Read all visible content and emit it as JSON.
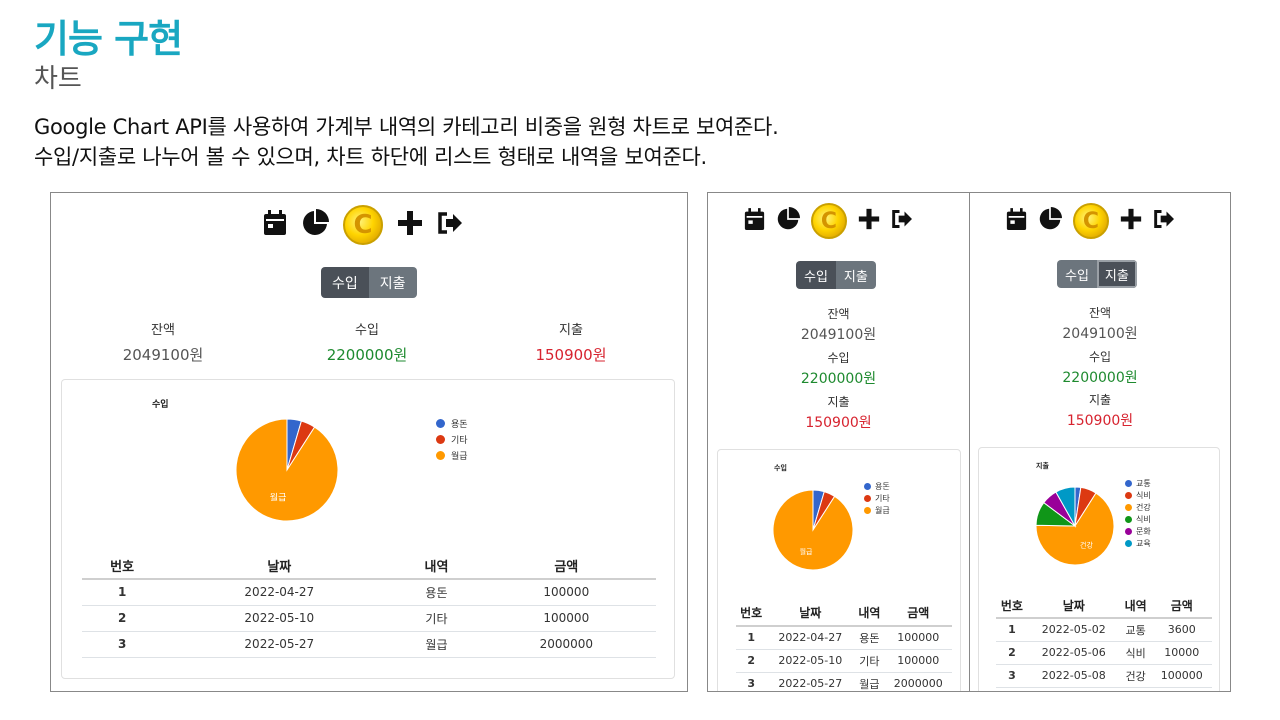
{
  "slide": {
    "title": "기능 구현",
    "subtitle": "차트",
    "desc_line1": "Google Chart API를 사용하여 가계부 내역의 카테고리 비중을 원형 차트로 보여준다.",
    "desc_line2": "수입/지출로 나누어 볼 수 있으며, 차트 하단에 리스트 형태로 내역을 보여준다."
  },
  "colors": {
    "accent": "#19a7c1",
    "income": "#1e8a2f",
    "expense": "#d7232f",
    "balance": "#555555",
    "seg_active": "#4a5058",
    "seg_inactive": "#6c757d"
  },
  "toolbar_icons": [
    "calendar-icon",
    "pie-chart-icon",
    "coin-logo",
    "plus-icon",
    "logout-icon"
  ],
  "coin_glyph": "C",
  "toggle": {
    "income": "수입",
    "expense": "지출"
  },
  "summary": {
    "balance_label": "잔액",
    "balance_value": "2049100원",
    "income_label": "수입",
    "income_value": "2200000원",
    "expense_label": "지출",
    "expense_value": "150900원"
  },
  "table_headers": [
    "번호",
    "날짜",
    "내역",
    "금액"
  ],
  "income_rows": [
    {
      "no": "1",
      "date": "2022-04-27",
      "item": "용돈",
      "amount": "100000"
    },
    {
      "no": "2",
      "date": "2022-05-10",
      "item": "기타",
      "amount": "100000"
    },
    {
      "no": "3",
      "date": "2022-05-27",
      "item": "월급",
      "amount": "2000000"
    }
  ],
  "expense_rows": [
    {
      "no": "1",
      "date": "2022-05-02",
      "item": "교통",
      "amount": "3600"
    },
    {
      "no": "2",
      "date": "2022-05-06",
      "item": "식비",
      "amount": "10000"
    },
    {
      "no": "3",
      "date": "2022-05-08",
      "item": "건강",
      "amount": "100000"
    }
  ],
  "chart_data": [
    {
      "type": "pie",
      "title": "수입",
      "labels": [
        "용돈",
        "기타",
        "월급"
      ],
      "values": [
        100000,
        100000,
        2000000
      ],
      "colors": [
        "#3366cc",
        "#dc3912",
        "#ff9900"
      ],
      "slice_label": "월급",
      "legend": "right"
    },
    {
      "type": "pie",
      "title": "수입",
      "labels": [
        "용돈",
        "기타",
        "월급"
      ],
      "values": [
        100000,
        100000,
        2000000
      ],
      "colors": [
        "#3366cc",
        "#dc3912",
        "#ff9900"
      ],
      "slice_label": "월급",
      "legend": "right"
    },
    {
      "type": "pie",
      "title": "지출",
      "labels": [
        "교통",
        "식비",
        "건강",
        "식비",
        "문화",
        "교육"
      ],
      "values": [
        3600,
        10000,
        100000,
        15000,
        10000,
        12300
      ],
      "colors": [
        "#3366cc",
        "#dc3912",
        "#ff9900",
        "#109618",
        "#990099",
        "#0099c6"
      ],
      "slice_label": "건강",
      "legend": "right"
    }
  ]
}
